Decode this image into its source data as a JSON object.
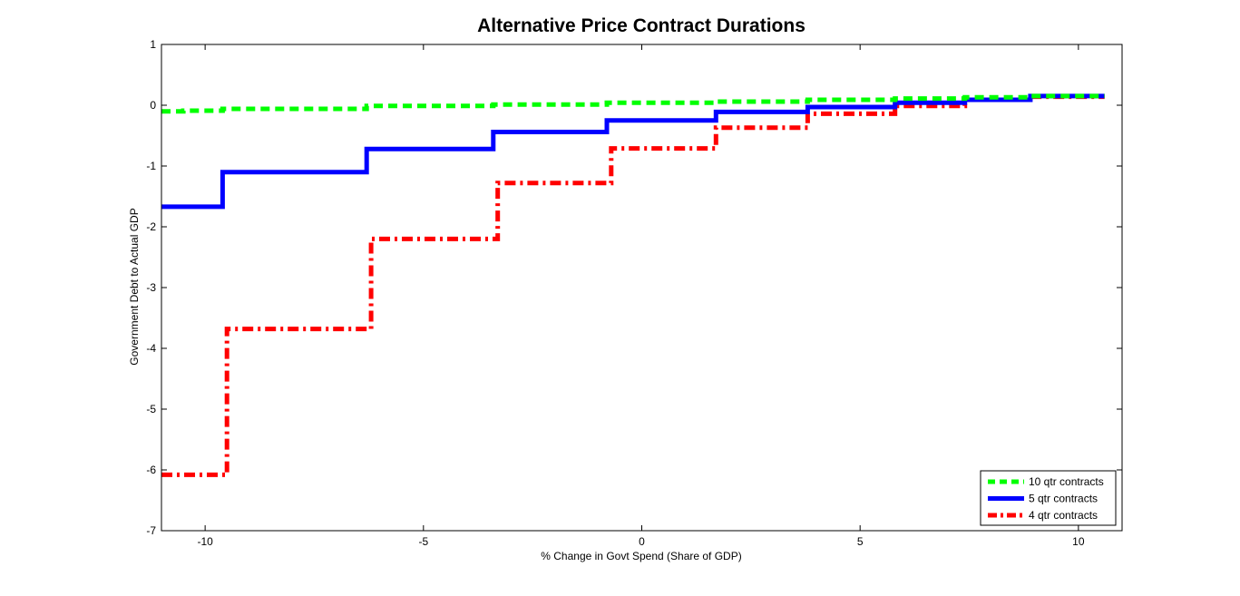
{
  "chart_data": {
    "type": "line",
    "title": "Alternative Price Contract Durations",
    "xlabel": "% Change in Govt Spend (Share of GDP)",
    "ylabel": "Government Debt to Actual GDP",
    "xlim": [
      -11,
      11
    ],
    "ylim": [
      -7,
      1
    ],
    "xticks": [
      -10,
      -5,
      0,
      5,
      10
    ],
    "yticks": [
      1,
      0,
      -1,
      -2,
      -3,
      -4,
      -5,
      -6,
      -7
    ],
    "grid": false,
    "legend_position": "bottom-right",
    "series": [
      {
        "name": "10 qtr contracts",
        "color": "#00ff00",
        "style": "dashed",
        "x": [
          -11,
          -10.5,
          -10.5,
          -9.6,
          -9.6,
          -6.3,
          -6.3,
          -3.4,
          -3.4,
          -0.8,
          -0.8,
          1.7,
          1.7,
          3.8,
          3.8,
          5.8,
          5.8,
          7.4,
          7.4,
          8.9,
          8.9,
          10.6
        ],
        "y": [
          -0.1,
          -0.1,
          -0.09,
          -0.09,
          -0.06,
          -0.06,
          -0.01,
          -0.01,
          0.01,
          0.01,
          0.04,
          0.04,
          0.06,
          0.06,
          0.09,
          0.09,
          0.11,
          0.11,
          0.13,
          0.13,
          0.15,
          0.15
        ]
      },
      {
        "name": "5 qtr contracts",
        "color": "#0000ff",
        "style": "solid",
        "x": [
          -11,
          -9.6,
          -9.6,
          -6.3,
          -6.3,
          -3.4,
          -3.4,
          -0.8,
          -0.8,
          1.7,
          1.7,
          3.8,
          3.8,
          5.8,
          5.8,
          7.4,
          7.4,
          8.9,
          8.9,
          10.6
        ],
        "y": [
          -1.67,
          -1.67,
          -1.1,
          -1.1,
          -0.72,
          -0.72,
          -0.44,
          -0.44,
          -0.25,
          -0.25,
          -0.11,
          -0.11,
          -0.03,
          -0.03,
          0.04,
          0.04,
          0.09,
          0.09,
          0.15,
          0.15
        ]
      },
      {
        "name": "4 qtr contracts",
        "color": "#ff0000",
        "style": "dashdot",
        "x": [
          -11,
          -9.5,
          -9.5,
          -6.2,
          -6.2,
          -3.3,
          -3.3,
          -0.7,
          -0.7,
          1.7,
          1.7,
          3.8,
          3.8,
          5.8,
          5.8,
          7.4,
          7.4,
          8.9,
          8.9,
          10.6
        ],
        "y": [
          -6.08,
          -6.08,
          -3.68,
          -3.68,
          -2.2,
          -2.2,
          -1.28,
          -1.28,
          -0.71,
          -0.71,
          -0.37,
          -0.37,
          -0.14,
          -0.14,
          -0.01,
          -0.01,
          0.09,
          0.09,
          0.14,
          0.14
        ]
      }
    ]
  }
}
